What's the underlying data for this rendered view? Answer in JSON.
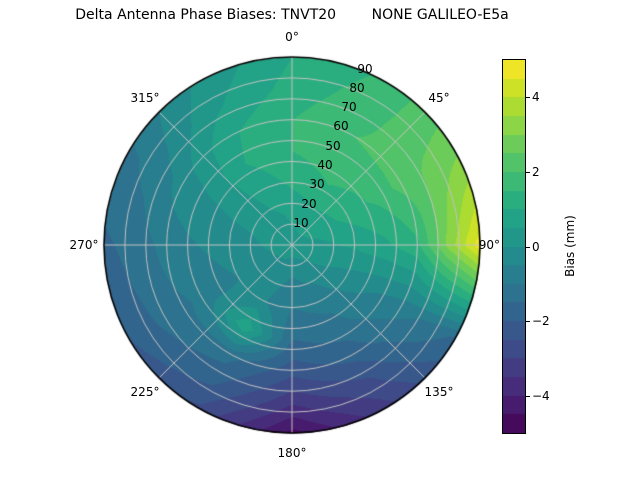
{
  "title": "Delta Antenna Phase Biases: TNVT20        NONE GALILEO-E5a",
  "chart_data": {
    "type": "heatmap",
    "projection": "polar",
    "title": "Delta Antenna Phase Biases: TNVT20        NONE GALILEO-E5a",
    "angular_labels": [
      "0°",
      "45°",
      "90°",
      "135°",
      "180°",
      "225°",
      "270°",
      "315°"
    ],
    "angular_positions_deg": [
      0,
      45,
      90,
      135,
      180,
      225,
      270,
      315
    ],
    "radial_ticks": [
      10,
      20,
      30,
      40,
      50,
      60,
      70,
      80,
      90
    ],
    "radial_max": 90,
    "azimuth_deg": [
      0,
      30,
      60,
      90,
      120,
      150,
      180,
      210,
      240,
      270,
      300,
      330
    ],
    "zenith_deg": [
      0,
      15,
      30,
      45,
      60,
      75,
      90
    ],
    "values_mm": [
      [
        0.3,
        0.3,
        0.3,
        0.3,
        0.3,
        0.3,
        0.3,
        0.3,
        0.3,
        0.3,
        0.3,
        0.3
      ],
      [
        0.6,
        0.8,
        0.7,
        0.4,
        0.1,
        -0.3,
        -0.5,
        -0.3,
        -0.2,
        0.0,
        0.1,
        0.4
      ],
      [
        1.1,
        1.4,
        1.2,
        0.6,
        -0.2,
        -0.8,
        -1.0,
        -0.4,
        -0.5,
        -0.3,
        0.1,
        0.7
      ],
      [
        1.5,
        1.8,
        1.6,
        0.9,
        -0.5,
        -1.2,
        -1.5,
        0.9,
        -0.8,
        -0.5,
        0.0,
        1.0
      ],
      [
        1.5,
        2.0,
        2.2,
        1.4,
        -0.8,
        -1.8,
        -2.3,
        -1.3,
        -1.1,
        -0.8,
        -0.3,
        0.9
      ],
      [
        1.2,
        1.8,
        2.6,
        3.2,
        -1.1,
        -2.6,
        -3.4,
        -1.9,
        -1.5,
        -1.3,
        -0.8,
        0.4
      ],
      [
        1.0,
        1.6,
        2.9,
        4.8,
        -1.6,
        -3.2,
        -4.7,
        -2.6,
        -2.0,
        -1.6,
        -1.1,
        0.1
      ]
    ],
    "colormap": "viridis",
    "vmin": -5,
    "vmax": 5,
    "level_step": 0.5,
    "grid": true,
    "grid_color": "#c3c3c3",
    "colorbar": {
      "label": "Bias (mm)",
      "ticks": [
        -4,
        -2,
        0,
        2,
        4
      ],
      "tick_labels": [
        "−4",
        "−2",
        "0",
        "2",
        "4"
      ]
    }
  }
}
